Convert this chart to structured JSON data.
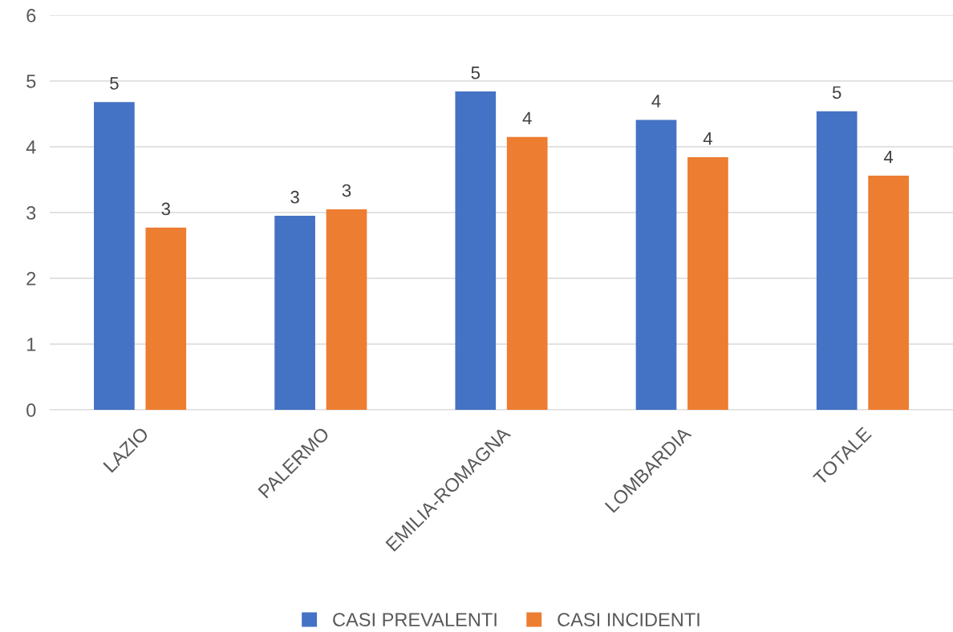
{
  "chart_data": {
    "type": "bar",
    "categories": [
      "LAZIO",
      "PALERMO",
      "EMILIA-ROMAGNA",
      "LOMBARDIA",
      "TOTALE"
    ],
    "series": [
      {
        "name": "CASI PREVALENTI",
        "color": "#4472c4",
        "values": [
          4.68,
          2.95,
          4.84,
          4.41,
          4.54
        ],
        "value_labels": [
          "5",
          "3",
          "5",
          "4",
          "5"
        ]
      },
      {
        "name": "CASI INCIDENTI",
        "color": "#ed7d31",
        "values": [
          2.77,
          3.05,
          4.15,
          3.84,
          3.56
        ],
        "value_labels": [
          "3",
          "3",
          "4",
          "4",
          "4"
        ]
      }
    ],
    "ylim": [
      0,
      6
    ],
    "yticks": [
      0,
      1,
      2,
      3,
      4,
      5,
      6
    ],
    "grid": "y",
    "legend": "bottom"
  }
}
